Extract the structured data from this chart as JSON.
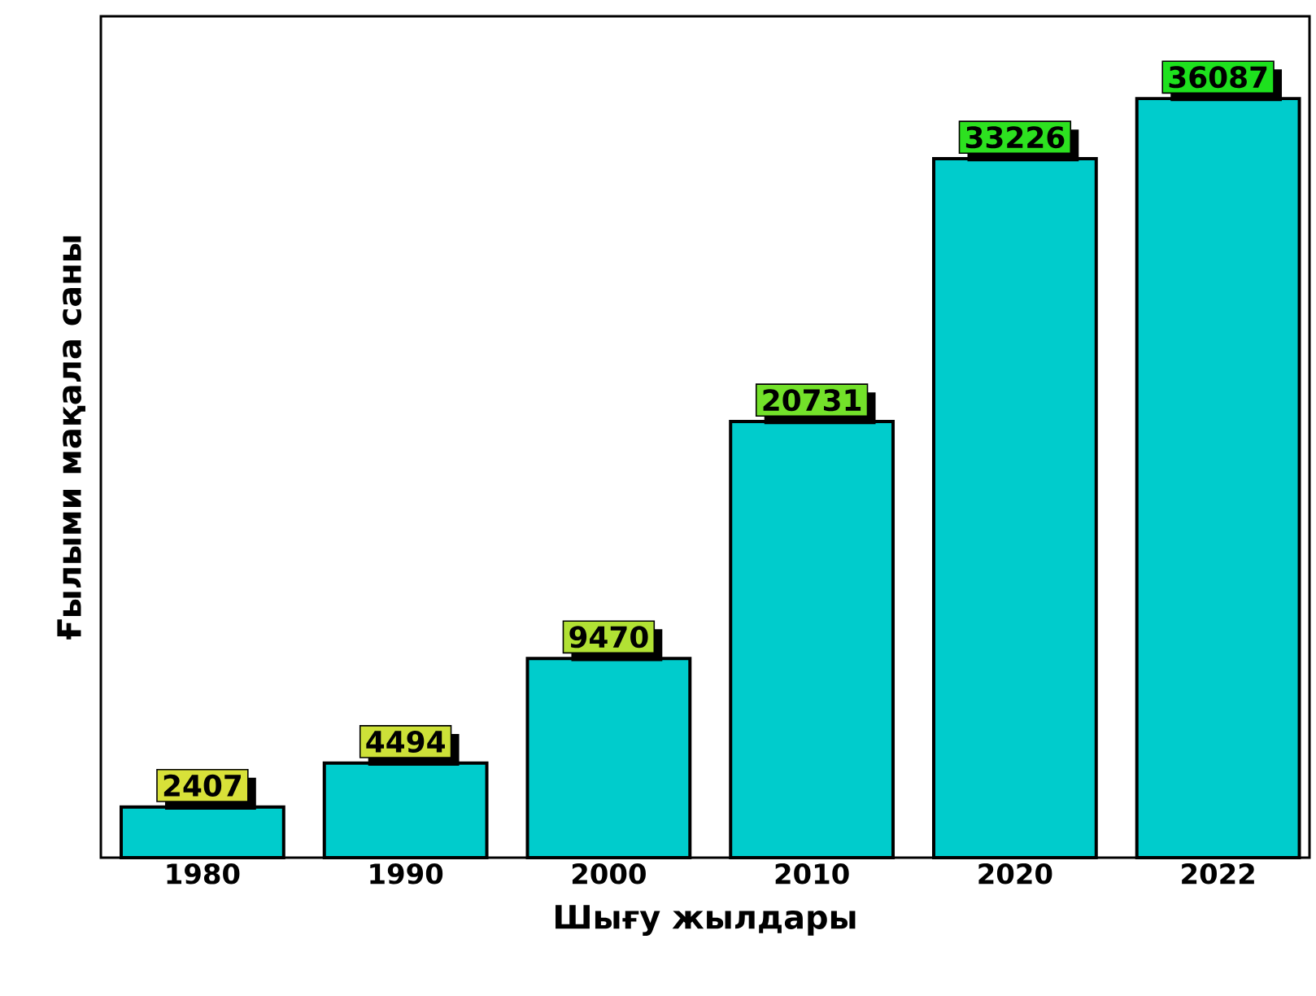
{
  "chart_data": {
    "type": "bar",
    "xlabel": "Шығу жылдары",
    "ylabel": "Ғылыми мақала саны",
    "categories": [
      "1980",
      "1990",
      "2000",
      "2010",
      "2020",
      "2022"
    ],
    "values": [
      2407,
      4494,
      9470,
      20731,
      33226,
      36087
    ],
    "color": "#00cccc",
    "ylim": [
      0,
      40000
    ],
    "data_labels": true,
    "tick_labels": "x",
    "grid": false
  }
}
